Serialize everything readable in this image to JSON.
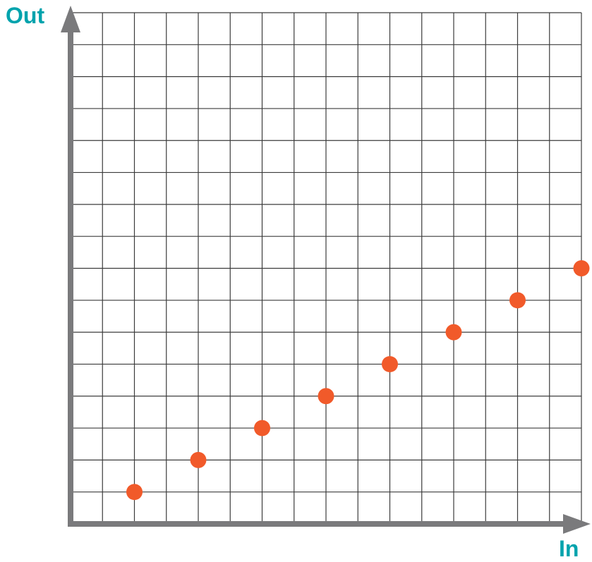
{
  "chart_data": {
    "type": "scatter",
    "title": "",
    "xlabel": "In",
    "ylabel": "Out",
    "xlim": [
      0,
      16
    ],
    "ylim": [
      0,
      16
    ],
    "grid": true,
    "x_tick_step": 1,
    "y_tick_step": 1,
    "x_tick_labels": false,
    "y_tick_labels": false,
    "series": [
      {
        "values": [
          {
            "x": 2,
            "y": 1
          },
          {
            "x": 4,
            "y": 2
          },
          {
            "x": 6,
            "y": 3
          },
          {
            "x": 8,
            "y": 4
          },
          {
            "x": 10,
            "y": 5
          },
          {
            "x": 12,
            "y": 6
          },
          {
            "x": 14,
            "y": 7
          },
          {
            "x": 16,
            "y": 8
          }
        ]
      }
    ]
  },
  "colors": {
    "axis": "#7a7a7c",
    "grid": "#3c3c3c",
    "point": "#f15a2a",
    "label": "#00a3ad"
  }
}
